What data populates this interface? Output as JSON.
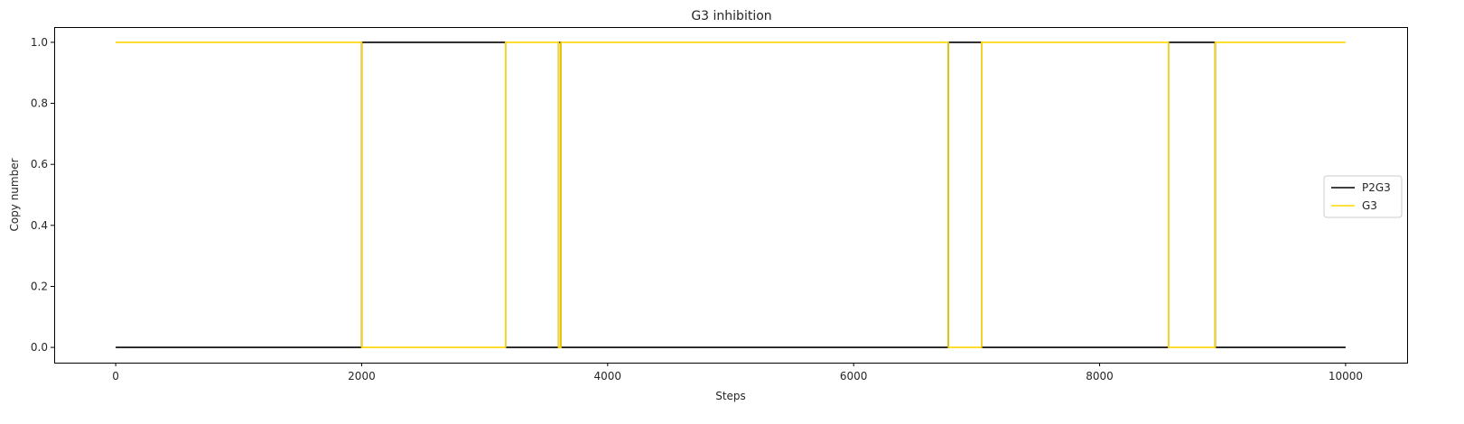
{
  "chart_data": {
    "type": "line",
    "title": "G3 inhibition",
    "xlabel": "Steps",
    "ylabel": "Copy number",
    "xlim": [
      -500,
      10500
    ],
    "ylim": [
      -0.05,
      1.05
    ],
    "xticks": [
      0,
      2000,
      4000,
      6000,
      8000,
      10000
    ],
    "yticks": [
      0.0,
      0.2,
      0.4,
      0.6,
      0.8,
      1.0
    ],
    "xtick_labels": [
      "0",
      "2000",
      "4000",
      "6000",
      "8000",
      "10000"
    ],
    "ytick_labels": [
      "0.0",
      "0.2",
      "0.4",
      "0.6",
      "0.8",
      "1.0"
    ],
    "grid": false,
    "legend_position": "center-right",
    "series": [
      {
        "name": "P2G3",
        "color": "#000000",
        "step": true,
        "x": [
          0,
          2000,
          3170,
          3600,
          3620,
          6770,
          7040,
          8560,
          8940,
          10000
        ],
        "y": [
          0,
          1,
          0,
          1,
          0,
          1,
          0,
          1,
          0,
          0
        ]
      },
      {
        "name": "G3",
        "color": "#FFD700",
        "step": true,
        "x": [
          0,
          2000,
          3170,
          3600,
          3620,
          6770,
          7040,
          8560,
          8940,
          10000
        ],
        "y": [
          1,
          0,
          1,
          0,
          1,
          0,
          1,
          0,
          1,
          1
        ]
      }
    ]
  }
}
